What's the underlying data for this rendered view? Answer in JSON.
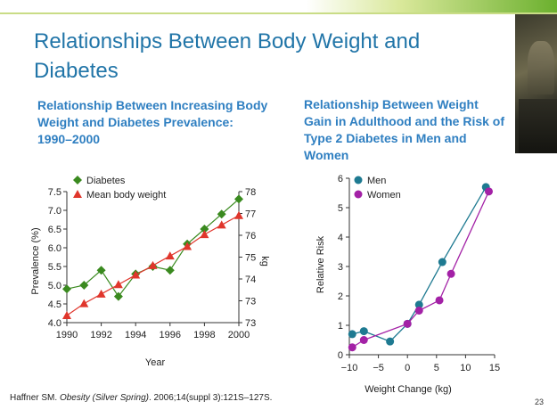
{
  "slide": {
    "title": "Relationships Between Body Weight and Diabetes",
    "page_number": "23"
  },
  "citation": {
    "author": "Haffner SM.",
    "journal": "Obesity (Silver Spring)",
    "rest": ". 2006;14(suppl 3):121S–127S."
  },
  "colors": {
    "title": "#2175a8",
    "subtitle": "#2f7fc1",
    "diabetes": "#3a8a1f",
    "mean_body_weight": "#e0362c",
    "men": "#1e7a91",
    "women": "#a321a6"
  },
  "chart_data": [
    {
      "type": "line",
      "heading": "Relationship Between Increasing Body Weight and Diabetes Prevalence: 1990–2000",
      "xlabel": "Year",
      "ylabel": "Prevalence (%)",
      "y2label": "kg",
      "x_ticks": [
        "1990",
        "1992",
        "1994",
        "1996",
        "1998",
        "2000"
      ],
      "y_ticks": [
        "4.0",
        "4.5",
        "5.0",
        "5.5",
        "6.0",
        "6.5",
        "7.0",
        "7.5"
      ],
      "y2_ticks": [
        "73",
        "73",
        "74",
        "75",
        "76",
        "77",
        "78"
      ],
      "xlim": [
        1990,
        2000
      ],
      "ylim": [
        4.0,
        7.5
      ],
      "y2lim": [
        72.5,
        78
      ],
      "legend_position": "top-left",
      "series": [
        {
          "name": "Diabetes",
          "marker": "diamond",
          "axis": "left",
          "x": [
            1990,
            1991,
            1992,
            1993,
            1994,
            1995,
            1996,
            1997,
            1998,
            1999,
            2000
          ],
          "y": [
            4.9,
            5.0,
            5.4,
            4.7,
            5.3,
            5.5,
            5.4,
            6.1,
            6.5,
            6.9,
            7.3
          ]
        },
        {
          "name": "Mean body weight",
          "marker": "triangle",
          "axis": "right",
          "x": [
            1990,
            1991,
            1992,
            1993,
            1994,
            1995,
            1996,
            1997,
            1998,
            1999,
            2000
          ],
          "y": [
            72.8,
            73.3,
            73.7,
            74.1,
            74.5,
            74.9,
            75.3,
            75.7,
            76.2,
            76.6,
            77.0
          ]
        }
      ]
    },
    {
      "type": "line",
      "heading": "Relationship Between Weight Gain in Adulthood and the Risk of Type 2 Diabetes in Men and Women",
      "xlabel": "Weight Change (kg)",
      "ylabel": "Relative Risk",
      "x_ticks": [
        "−10",
        "−5",
        "0",
        "5",
        "10",
        "15"
      ],
      "y_ticks": [
        "0",
        "1",
        "2",
        "3",
        "4",
        "5",
        "6"
      ],
      "xlim": [
        -10,
        15
      ],
      "ylim": [
        0,
        6
      ],
      "legend_position": "top-left",
      "series": [
        {
          "name": "Men",
          "marker": "circle",
          "x": [
            -9.5,
            -7.5,
            -3,
            0,
            2,
            6,
            13.5
          ],
          "y": [
            0.7,
            0.8,
            0.45,
            1.05,
            1.7,
            3.15,
            5.7
          ]
        },
        {
          "name": "Women",
          "marker": "circle",
          "x": [
            -9.5,
            -7.5,
            0,
            2,
            5.5,
            7.5,
            14
          ],
          "y": [
            0.25,
            0.5,
            1.05,
            1.5,
            1.85,
            2.75,
            5.55
          ]
        }
      ]
    }
  ]
}
